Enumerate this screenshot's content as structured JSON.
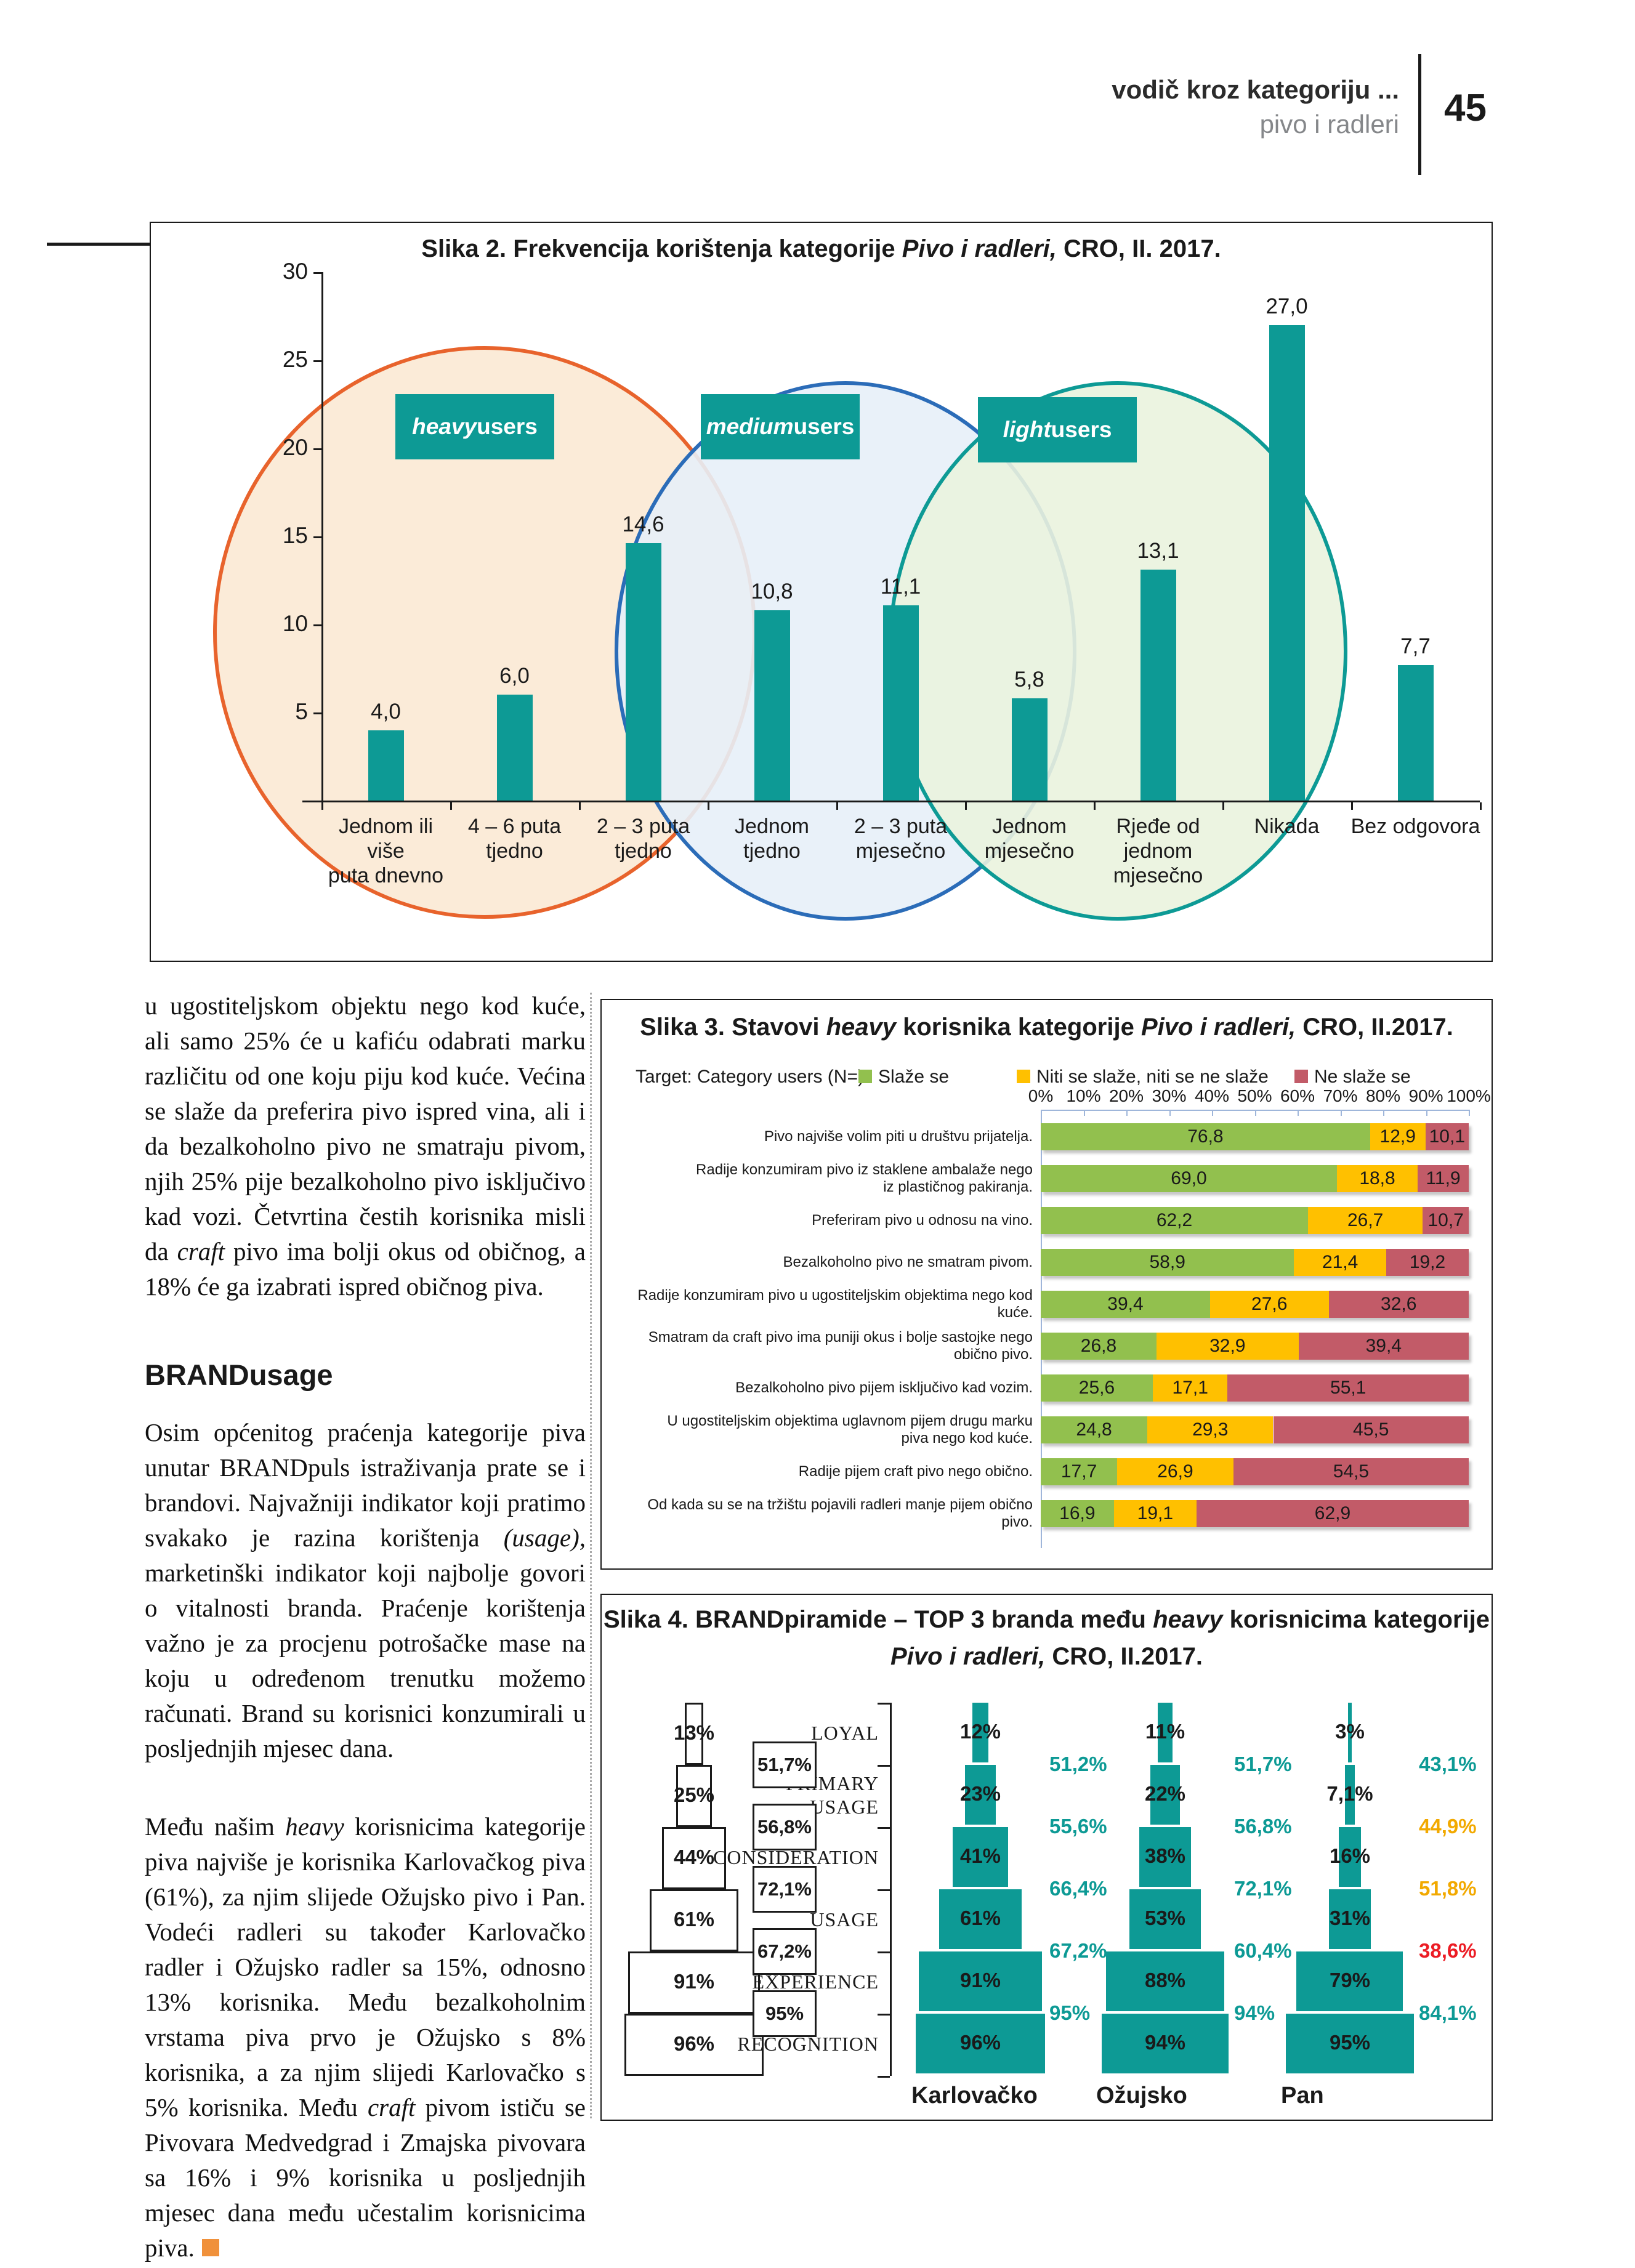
{
  "header": {
    "title": "vodič kroz kategoriju ...",
    "subtitle": "pivo i radleri",
    "page_number": "45"
  },
  "colors": {
    "teal": "#0d9a95",
    "ink": "#1a1a1a",
    "heavy_border": "#e8632c",
    "heavy_fill": "#fbe9d4",
    "medium_border": "#2b6cb8",
    "medium_fill": "#e7f0f8",
    "light_border": "#0d9a95",
    "light_fill": "#eaf3de",
    "green": "#92c04e",
    "amber": "#ffc000",
    "rose": "#c25b68",
    "axis_blue": "#9fb6da",
    "conv_teal": "#0d9a95",
    "conv_orange": "#f2a900",
    "conv_red": "#ec1c24",
    "end_square": "#f0913b"
  },
  "article": {
    "para1": [
      {
        "t": "u ugostiteljskom objektu nego kod kuće, ali samo 25% će u kafiću odabrati marku različitu od one koju piju kod kuće. Većina se slaže da preferira pivo ispred vina, ali i da bezalkoholno pivo ne smatraju pivom, njih 25% pije bezalkoholno pivo isključivo kad vozi. Četvrtina čestih korisnika misli da "
      },
      {
        "t": "craft",
        "i": true
      },
      {
        "t": " pivo ima bolji okus od običnog, a 18% će ga izabrati ispred običnog piva."
      }
    ],
    "heading": "BRANDusage",
    "para2": [
      {
        "t": "Osim općenitog praćenja kategorije piva unutar BRANDpuls istraživanja prate se i brandovi. Najvažniji indikator koji pratimo svakako je razina korištenja "
      },
      {
        "t": "(usage),",
        "i": true
      },
      {
        "t": " marketinški indikator koji najbolje govori o vitalnosti branda. Praćenje korištenja važno je za procjenu potrošačke mase na koju u određenom trenutku možemo računati. Brand su korisnici konzumirali u posljednjih mjesec dana."
      }
    ],
    "para3": [
      {
        "t": "Među našim "
      },
      {
        "t": "heavy",
        "i": true
      },
      {
        "t": " korisnicima kategorije piva najviše je korisnika Karlovačkog piva (61%), za njim slijede Ožujsko pivo i Pan. Vodeći radleri su također Karlovačko radler i Ožujsko radler sa 15%, odnosno 13% korisnika. Među bezalkoholnim vrstama piva prvo je Ožujsko s 8% korisnika, a za njim slijedi Karlovačko s 5% korisnika. Među "
      },
      {
        "t": "craft",
        "i": true
      },
      {
        "t": " pivom ističu se Pivovara Medvedgrad i Zmajska pivovara sa 16% i 9% korisnika u posljednjih mjesec dana među učestalim korisnicima piva."
      }
    ]
  },
  "chart_data": [
    {
      "id": "slika2",
      "type": "bar",
      "title_parts": [
        {
          "t": "Slika 2. Frekvencija korištenja kategorije "
        },
        {
          "t": "Pivo i radleri,",
          "i": true
        },
        {
          "t": " CRO, II. 2017."
        }
      ],
      "ylim": [
        0,
        30
      ],
      "yticks": [
        "5",
        "10",
        "15",
        "20",
        "25",
        "30"
      ],
      "grid": false,
      "legend_position": "none",
      "categories": [
        "Jednom ili više puta dnevno",
        "4 – 6 puta tjedno",
        "2 – 3 puta tjedno",
        "Jednom tjedno",
        "2 – 3 puta mjesečno",
        "Jednom mjesečno",
        "Rjeđe od jednom mjesečno",
        "Nikada",
        "Bez odgovora"
      ],
      "category_lines": [
        [
          "Jednom ili više",
          "puta dnevno"
        ],
        [
          "4 – 6 puta",
          "tjedno"
        ],
        [
          "2 – 3 puta",
          "tjedno"
        ],
        [
          "Jednom tjedno"
        ],
        [
          "2 – 3 puta",
          "mjesečno"
        ],
        [
          "Jednom",
          "mjesečno"
        ],
        [
          "Rjeđe od",
          "jednom",
          "mjesečno"
        ],
        [
          "Nikada"
        ],
        [
          "Bez odgovora"
        ]
      ],
      "values": [
        4.0,
        6.0,
        14.6,
        10.8,
        11.1,
        5.8,
        13.1,
        27.0,
        7.7
      ],
      "value_labels": [
        "4,0",
        "6,0",
        "14,6",
        "10,8",
        "11,1",
        "5,8",
        "13,1",
        "27,0",
        "7,7"
      ],
      "groups": [
        {
          "italic": "heavy",
          "rest": " users",
          "border": "heavy_border",
          "fill": "heavy_fill"
        },
        {
          "italic": "medium",
          "rest": " users",
          "border": "medium_border",
          "fill": "medium_fill"
        },
        {
          "italic": "light",
          "rest": " users",
          "border": "light_border",
          "fill": "light_fill"
        }
      ]
    },
    {
      "id": "slika3",
      "type": "stacked-bar-horizontal",
      "title_parts": [
        {
          "t": "Slika 3. Stavovi "
        },
        {
          "t": "heavy",
          "i": true
        },
        {
          "t": " korisnika kategorije "
        },
        {
          "t": "Pivo i radleri,",
          "i": true
        },
        {
          "t": " CRO, II.2017."
        }
      ],
      "target_label": "Target: Category users (N=)",
      "legend": [
        {
          "label": "Slaže se",
          "color": "green"
        },
        {
          "label": "Niti se slaže, niti se ne slaže",
          "color": "amber"
        },
        {
          "label": "Ne slaže se",
          "color": "rose"
        }
      ],
      "xticks": [
        "0%",
        "10%",
        "20%",
        "30%",
        "40%",
        "50%",
        "60%",
        "70%",
        "80%",
        "90%",
        "100%"
      ],
      "xlim": [
        0,
        100
      ],
      "rows": [
        {
          "lines": [
            "Pivo najviše volim piti u društvu prijatelja."
          ],
          "values": [
            76.8,
            12.9,
            10.1
          ],
          "labels": [
            "76,8",
            "12,9",
            "10,1"
          ]
        },
        {
          "lines": [
            "Radije konzumiram pivo iz staklene ambalaže nego",
            "iz plastičnog pakiranja."
          ],
          "values": [
            69.0,
            18.8,
            11.9
          ],
          "labels": [
            "69,0",
            "18,8",
            "11,9"
          ]
        },
        {
          "lines": [
            "Preferiram pivo u odnosu na vino."
          ],
          "values": [
            62.2,
            26.7,
            10.7
          ],
          "labels": [
            "62,2",
            "26,7",
            "10,7"
          ]
        },
        {
          "lines": [
            "Bezalkoholno pivo ne smatram pivom."
          ],
          "values": [
            58.9,
            21.4,
            19.2
          ],
          "labels": [
            "58,9",
            "21,4",
            "19,2"
          ]
        },
        {
          "lines": [
            "Radije konzumiram pivo u ugostiteljskim objektima nego kod kuće."
          ],
          "values": [
            39.4,
            27.6,
            32.6
          ],
          "labels": [
            "39,4",
            "27,6",
            "32,6"
          ]
        },
        {
          "lines": [
            "Smatram da craft pivo ima puniji okus i bolje sastojke nego obično pivo."
          ],
          "values": [
            26.8,
            32.9,
            39.4
          ],
          "labels": [
            "26,8",
            "32,9",
            "39,4"
          ]
        },
        {
          "lines": [
            "Bezalkoholno pivo pijem isključivo kad vozim."
          ],
          "values": [
            25.6,
            17.1,
            55.1
          ],
          "labels": [
            "25,6",
            "17,1",
            "55,1"
          ]
        },
        {
          "lines": [
            "U ugostiteljskim objektima uglavnom pijem drugu marku",
            "piva nego kod kuće."
          ],
          "values": [
            24.8,
            29.3,
            45.5
          ],
          "labels": [
            "24,8",
            "29,3",
            "45,5"
          ]
        },
        {
          "lines": [
            "Radije pijem craft pivo nego obično."
          ],
          "values": [
            17.7,
            26.9,
            54.5
          ],
          "labels": [
            "17,7",
            "26,9",
            "54,5"
          ]
        },
        {
          "lines": [
            "Od kada su se na tržištu pojavili radleri manje pijem obično pivo."
          ],
          "values": [
            16.9,
            19.1,
            62.9
          ],
          "labels": [
            "16,9",
            "19,1",
            "62,9"
          ]
        }
      ]
    },
    {
      "id": "slika4",
      "type": "pyramid",
      "title_line1_parts": [
        {
          "t": "Slika 4. BRANDpiramide – TOP 3 branda među "
        },
        {
          "t": "heavy",
          "i": true
        },
        {
          "t": " korisnicima kategorije"
        }
      ],
      "title_line2_parts": [
        {
          "t": "Pivo i radleri,",
          "i": true
        },
        {
          "t": " CRO, II.2017."
        }
      ],
      "levels": [
        [
          "LOYAL"
        ],
        [
          "PRIMARY",
          "USAGE"
        ],
        [
          "CONSIDERATION"
        ],
        [
          "USAGE"
        ],
        [
          "EXPERIENCE"
        ],
        [
          "RECOGNITION"
        ]
      ],
      "reference": {
        "values": [
          13,
          25,
          44,
          61,
          91,
          96
        ],
        "labels": [
          "13%",
          "25%",
          "44%",
          "61%",
          "91%",
          "96%"
        ],
        "conversions": [
          "51,7%",
          "56,8%",
          "72,1%",
          "67,2%",
          "95%"
        ]
      },
      "brands": [
        {
          "name": "Karlovačko",
          "values": [
            12,
            23,
            41,
            61,
            91,
            96
          ],
          "labels": [
            "12%",
            "23%",
            "41%",
            "61%",
            "91%",
            "96%"
          ],
          "conversions": [
            {
              "t": "51,2%",
              "c": "conv_teal"
            },
            {
              "t": "55,6%",
              "c": "conv_teal"
            },
            {
              "t": "66,4%",
              "c": "conv_teal"
            },
            {
              "t": "67,2%",
              "c": "conv_teal"
            },
            {
              "t": "95%",
              "c": "conv_teal"
            }
          ]
        },
        {
          "name": "Ožujsko",
          "values": [
            11,
            22,
            38,
            53,
            88,
            94
          ],
          "labels": [
            "11%",
            "22%",
            "38%",
            "53%",
            "88%",
            "94%"
          ],
          "conversions": [
            {
              "t": "51,7%",
              "c": "conv_teal"
            },
            {
              "t": "56,8%",
              "c": "conv_teal"
            },
            {
              "t": "72,1%",
              "c": "conv_teal"
            },
            {
              "t": "60,4%",
              "c": "conv_teal"
            },
            {
              "t": "94%",
              "c": "conv_teal"
            }
          ]
        },
        {
          "name": "Pan",
          "values": [
            3,
            7.1,
            16,
            31,
            79,
            95
          ],
          "labels": [
            "3%",
            "7,1%",
            "16%",
            "31%",
            "79%",
            "95%"
          ],
          "conversions": [
            {
              "t": "43,1%",
              "c": "conv_teal"
            },
            {
              "t": "44,9%",
              "c": "conv_orange"
            },
            {
              "t": "51,8%",
              "c": "conv_orange"
            },
            {
              "t": "38,6%",
              "c": "conv_red"
            },
            {
              "t": "84,1%",
              "c": "conv_teal"
            }
          ]
        }
      ]
    }
  ]
}
